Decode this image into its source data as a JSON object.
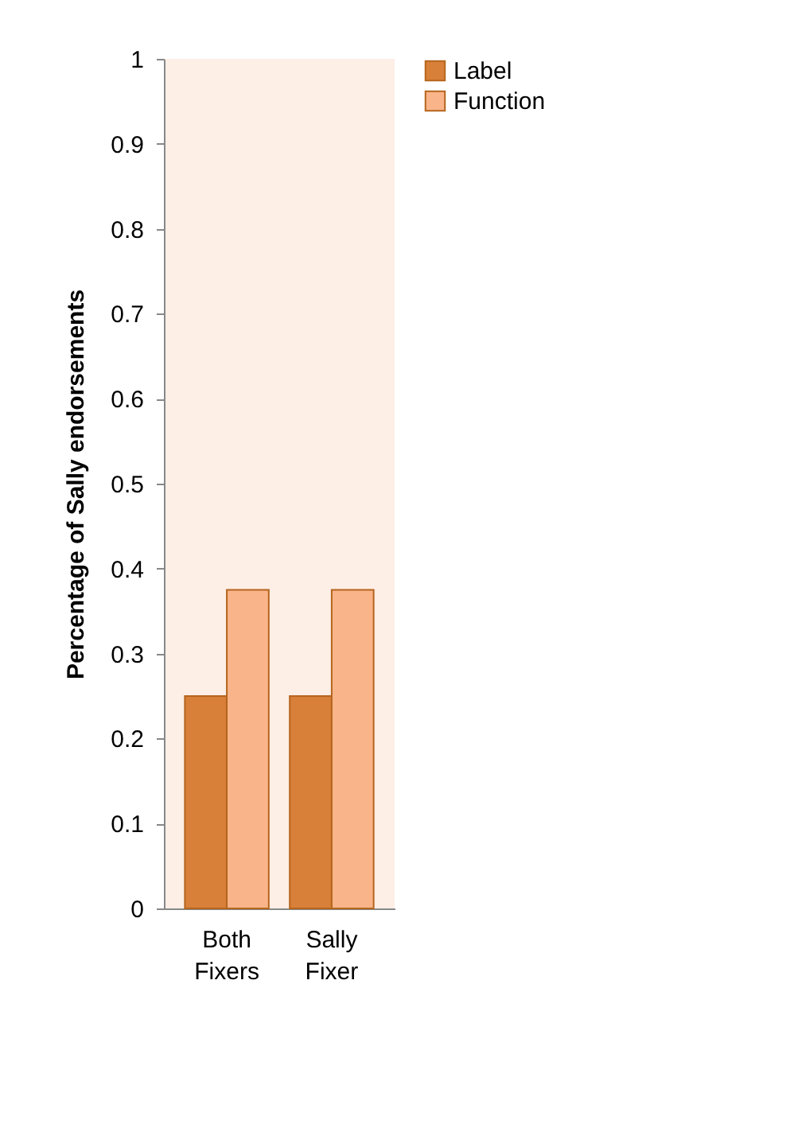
{
  "chart_data": {
    "type": "bar",
    "ylabel": "Percentage of Sally endorsements",
    "categories": [
      "Both Fixers",
      "Sally Fixer"
    ],
    "series": [
      {
        "name": "Label",
        "color": "#d8803a",
        "values": [
          0.25,
          0.25
        ]
      },
      {
        "name": "Function",
        "color": "#f9b48a",
        "values": [
          0.375,
          0.375
        ]
      }
    ],
    "ylim": [
      0,
      1
    ],
    "yticks": [
      0,
      0.1,
      0.2,
      0.3,
      0.4,
      0.5,
      0.6,
      0.7,
      0.8,
      0.9,
      1
    ],
    "grid": false,
    "legend": "right"
  }
}
